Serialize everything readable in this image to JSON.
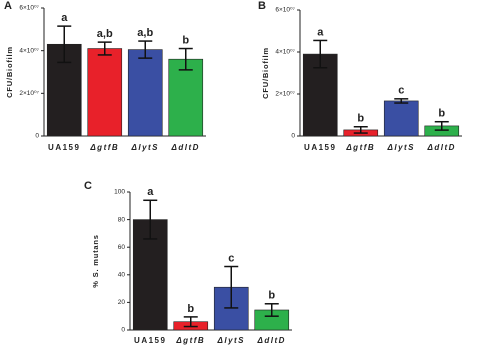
{
  "chart_data": [
    {
      "type": "bar",
      "panel_label": "A",
      "ylabel": "CFU/Biofilm",
      "categories": [
        "UA159",
        "ΔgtfB",
        "ΔlytS",
        "ΔdltD"
      ],
      "values": [
        43000000,
        41000000,
        40500000,
        36000000
      ],
      "errors": [
        8500000,
        3000000,
        4000000,
        5000000
      ],
      "letters": [
        "a",
        "a,b",
        "a,b",
        "b"
      ],
      "colors": [
        "#231f20",
        "#e8212a",
        "#3a4fa3",
        "#2db04b"
      ],
      "ylim": [
        0,
        60000000
      ],
      "yticks": [
        0,
        {
          "value": 20000000,
          "label": "2×10⁰⁷"
        },
        {
          "value": 40000000,
          "label": "4×10⁰⁷"
        },
        {
          "value": 60000000,
          "label": "6×10⁰⁷"
        }
      ]
    },
    {
      "type": "bar",
      "panel_label": "B",
      "ylabel": "CFU/Biofilm",
      "categories": [
        "UA159",
        "ΔgtfB",
        "ΔlytS",
        "ΔdltD"
      ],
      "values": [
        39000000,
        2900000,
        16700000,
        4800000
      ],
      "errors": [
        6500000,
        1500000,
        1000000,
        2000000
      ],
      "letters": [
        "a",
        "b",
        "c",
        "b"
      ],
      "colors": [
        "#231f20",
        "#e8212a",
        "#3a4fa3",
        "#2db04b"
      ],
      "ylim": [
        0,
        60000000
      ],
      "yticks": [
        0,
        {
          "value": 20000000,
          "label": "2×10⁰⁷"
        },
        {
          "value": 40000000,
          "label": "4×10⁰⁷"
        },
        {
          "value": 60000000,
          "label": "6×10⁰⁷"
        }
      ]
    },
    {
      "type": "bar",
      "panel_label": "C",
      "ylabel": "% S. mutans",
      "categories": [
        "UA159",
        "ΔgtfB",
        "ΔlytS",
        "ΔdltD"
      ],
      "values": [
        80,
        6,
        31,
        14.5
      ],
      "errors": [
        14,
        3.5,
        15,
        4.5
      ],
      "letters": [
        "a",
        "b",
        "c",
        "b"
      ],
      "colors": [
        "#231f20",
        "#e8212a",
        "#3a4fa3",
        "#2db04b"
      ],
      "ylim": [
        0,
        100
      ],
      "yticks": [
        0,
        20,
        40,
        60,
        80,
        100
      ]
    }
  ]
}
